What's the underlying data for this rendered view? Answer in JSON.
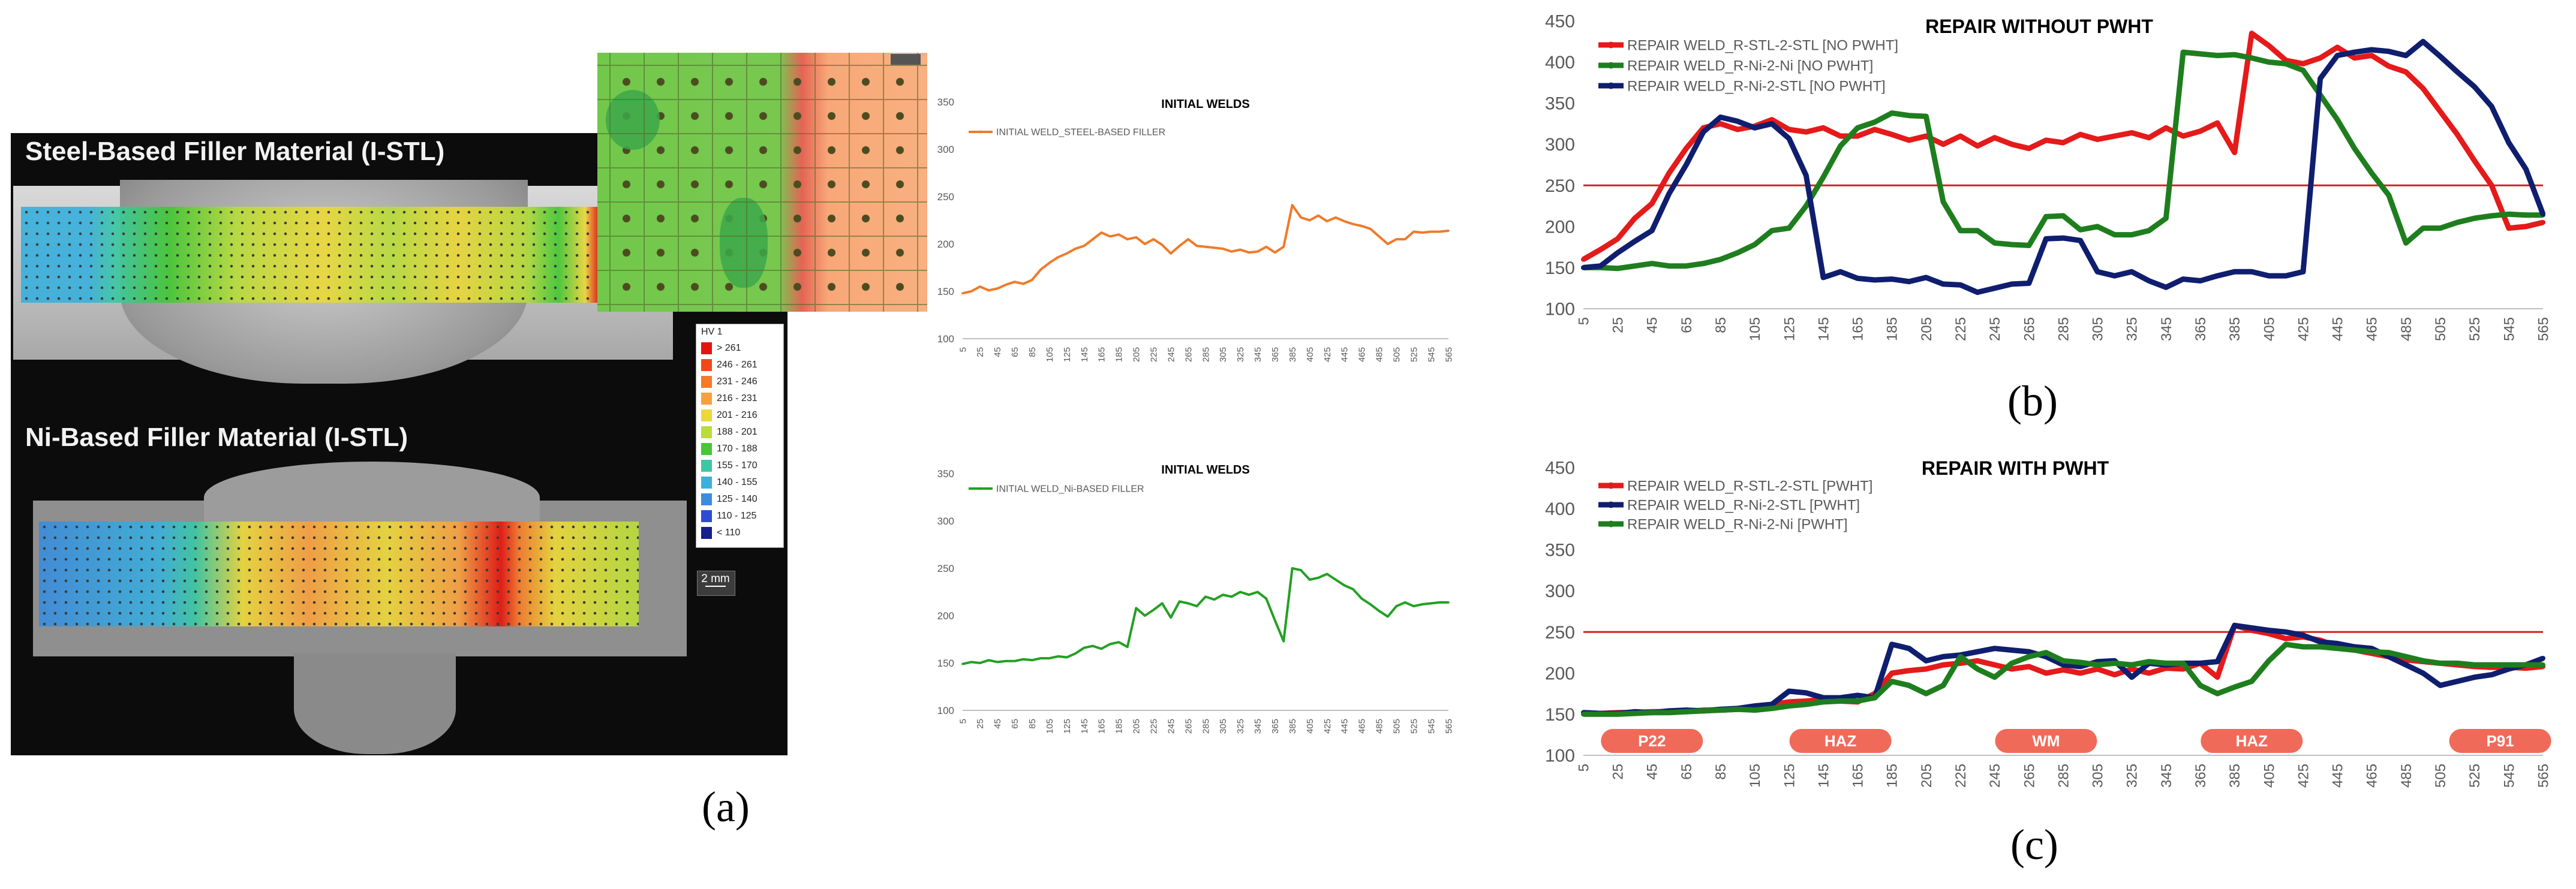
{
  "panel_labels": {
    "a": "(a)",
    "b": "(b)",
    "c": "(c)"
  },
  "micrograph": {
    "steel_title": "Steel-Based Filler Material (I-STL)",
    "ni_title": "Ni-Based Filler Material (I-STL)",
    "scale_bar_text": "2 mm",
    "legend_title": "HV 1",
    "legend": [
      {
        "label": "> 261",
        "color": "#e4150f"
      },
      {
        "label": "246 - 261",
        "color": "#f04a1a"
      },
      {
        "label": "231 - 246",
        "color": "#f57a2a"
      },
      {
        "label": "216 - 231",
        "color": "#f8a040"
      },
      {
        "label": "201 - 216",
        "color": "#ecd83a"
      },
      {
        "label": "188 - 201",
        "color": "#b8dc3c"
      },
      {
        "label": "170 - 188",
        "color": "#44c834"
      },
      {
        "label": "155 - 170",
        "color": "#3cc8a4"
      },
      {
        "label": "140 - 155",
        "color": "#3cb0dc"
      },
      {
        "label": "125 - 140",
        "color": "#3c8cdc"
      },
      {
        "label": "110 - 125",
        "color": "#2c4cd4"
      },
      {
        "label": "< 110",
        "color": "#141e8c"
      }
    ]
  },
  "chart_data": [
    {
      "id": "steel_initial",
      "type": "line",
      "title": "INITIAL WELDS",
      "xlabel": "",
      "ylabel": "",
      "ylim": [
        100,
        350
      ],
      "yticks": [
        100,
        150,
        200,
        250,
        300,
        350
      ],
      "x": [
        5,
        15,
        25,
        35,
        45,
        55,
        65,
        75,
        85,
        95,
        105,
        115,
        125,
        135,
        145,
        155,
        165,
        175,
        185,
        195,
        205,
        215,
        225,
        235,
        245,
        255,
        265,
        275,
        285,
        295,
        305,
        315,
        325,
        335,
        345,
        355,
        365,
        375,
        385,
        395,
        405,
        415,
        425,
        435,
        445,
        455,
        465,
        475,
        485,
        495,
        505,
        515,
        525,
        535,
        545,
        555,
        565
      ],
      "xtick_labels": [
        "5",
        "25",
        "45",
        "65",
        "85",
        "105",
        "125",
        "145",
        "165",
        "185",
        "205",
        "225",
        "245",
        "265",
        "285",
        "305",
        "325",
        "345",
        "365",
        "385",
        "405",
        "425",
        "445",
        "465",
        "485",
        "505",
        "525",
        "545",
        "565"
      ],
      "series": [
        {
          "name": "INITIAL WELD_STEEL-BASED FILLER",
          "color": "#f07a2a",
          "values": [
            148,
            150,
            155,
            151,
            153,
            157,
            160,
            158,
            162,
            173,
            180,
            186,
            190,
            195,
            198,
            205,
            212,
            208,
            210,
            205,
            207,
            200,
            205,
            199,
            190,
            198,
            205,
            198,
            197,
            196,
            195,
            192,
            194,
            191,
            192,
            197,
            191,
            197,
            241,
            228,
            225,
            230,
            224,
            228,
            224,
            221,
            219,
            216,
            208,
            200,
            205,
            205,
            213,
            212,
            213,
            213,
            214
          ]
        }
      ],
      "grid": false
    },
    {
      "id": "ni_initial",
      "type": "line",
      "title": "INITIAL WELDS",
      "xlabel": "",
      "ylabel": "",
      "ylim": [
        100,
        350
      ],
      "yticks": [
        100,
        150,
        200,
        250,
        300,
        350
      ],
      "x": [
        5,
        15,
        25,
        35,
        45,
        55,
        65,
        75,
        85,
        95,
        105,
        115,
        125,
        135,
        145,
        155,
        165,
        175,
        185,
        195,
        205,
        215,
        225,
        235,
        245,
        255,
        265,
        275,
        285,
        295,
        305,
        315,
        325,
        335,
        345,
        355,
        365,
        375,
        385,
        395,
        405,
        415,
        425,
        435,
        445,
        455,
        465,
        475,
        485,
        495,
        505,
        515,
        525,
        535,
        545,
        555,
        565
      ],
      "xtick_labels": [
        "5",
        "25",
        "45",
        "65",
        "85",
        "105",
        "125",
        "145",
        "165",
        "185",
        "205",
        "225",
        "245",
        "265",
        "285",
        "305",
        "325",
        "345",
        "365",
        "385",
        "405",
        "425",
        "445",
        "465",
        "485",
        "505",
        "525",
        "545",
        "565"
      ],
      "series": [
        {
          "name": "INITIAL WELD_Ni-BASED FILLER",
          "color": "#23a023",
          "values": [
            149,
            151,
            150,
            153,
            151,
            152,
            152,
            154,
            153,
            155,
            155,
            157,
            156,
            160,
            166,
            168,
            165,
            170,
            172,
            167,
            208,
            200,
            206,
            213,
            198,
            215,
            213,
            210,
            220,
            217,
            222,
            220,
            225,
            222,
            225,
            218,
            195,
            173,
            250,
            248,
            238,
            240,
            244,
            238,
            232,
            228,
            218,
            212,
            205,
            199,
            210,
            214,
            210,
            212,
            213,
            214,
            214
          ]
        }
      ],
      "grid": false
    },
    {
      "id": "repair_without_pwht",
      "type": "line",
      "title": "REPAIR WITHOUT PWHT",
      "xlabel": "",
      "ylabel": "",
      "ylim": [
        100,
        450
      ],
      "yticks": [
        100,
        150,
        200,
        250,
        300,
        350,
        400,
        450
      ],
      "x": [
        5,
        15,
        25,
        35,
        45,
        55,
        65,
        75,
        85,
        95,
        105,
        115,
        125,
        135,
        145,
        155,
        165,
        175,
        185,
        195,
        205,
        215,
        225,
        235,
        245,
        255,
        265,
        275,
        285,
        295,
        305,
        315,
        325,
        335,
        345,
        355,
        365,
        375,
        385,
        395,
        405,
        415,
        425,
        435,
        445,
        455,
        465,
        475,
        485,
        495,
        505,
        515,
        525,
        535,
        545,
        555,
        565
      ],
      "xtick_labels": [
        "5",
        "25",
        "45",
        "65",
        "85",
        "105",
        "125",
        "145",
        "165",
        "185",
        "205",
        "225",
        "245",
        "265",
        "285",
        "305",
        "325",
        "345",
        "365",
        "385",
        "405",
        "425",
        "445",
        "465",
        "485",
        "505",
        "525",
        "545",
        "565"
      ],
      "reference_line": {
        "value": 250,
        "color": "#d42020"
      },
      "series": [
        {
          "name": "REPAIR WELD_R-STL-2-STL [NO PWHT]",
          "color": "#e51a1a",
          "values": [
            160,
            172,
            185,
            210,
            228,
            265,
            295,
            320,
            325,
            318,
            322,
            330,
            318,
            315,
            320,
            310,
            310,
            318,
            312,
            305,
            310,
            300,
            310,
            298,
            308,
            300,
            295,
            305,
            302,
            312,
            306,
            310,
            314,
            308,
            320,
            310,
            316,
            326,
            290,
            435,
            420,
            402,
            398,
            405,
            418,
            405,
            408,
            395,
            388,
            368,
            340,
            312,
            280,
            250,
            198,
            200,
            205
          ]
        },
        {
          "name": "REPAIR WELD_R-Ni-2-Ni [NO PWHT]",
          "color": "#1e7e1e",
          "values": [
            150,
            150,
            149,
            152,
            155,
            152,
            152,
            155,
            160,
            168,
            178,
            195,
            198,
            225,
            260,
            298,
            320,
            327,
            338,
            335,
            334,
            230,
            195,
            195,
            180,
            178,
            177,
            212,
            213,
            196,
            200,
            190,
            190,
            195,
            210,
            412,
            410,
            408,
            409,
            405,
            400,
            398,
            390,
            360,
            330,
            295,
            265,
            238,
            180,
            198,
            198,
            205,
            210,
            213,
            215,
            214,
            214
          ]
        },
        {
          "name": "REPAIR WELD_R-Ni-2-STL [NO PWHT]",
          "color": "#0f1e6e",
          "values": [
            150,
            152,
            168,
            182,
            195,
            240,
            275,
            315,
            333,
            328,
            320,
            325,
            307,
            262,
            138,
            145,
            137,
            135,
            136,
            133,
            138,
            130,
            129,
            120,
            125,
            130,
            131,
            185,
            186,
            183,
            145,
            140,
            145,
            134,
            126,
            136,
            134,
            140,
            145,
            145,
            140,
            140,
            145,
            380,
            408,
            412,
            415,
            413,
            408,
            425,
            407,
            388,
            370,
            346,
            302,
            270,
            215
          ]
        }
      ],
      "grid": false
    },
    {
      "id": "repair_with_pwht",
      "type": "line",
      "title": "REPAIR WITH PWHT",
      "xlabel": "",
      "ylabel": "",
      "ylim": [
        100,
        450
      ],
      "yticks": [
        100,
        150,
        200,
        250,
        300,
        350,
        400,
        450
      ],
      "x": [
        5,
        15,
        25,
        35,
        45,
        55,
        65,
        75,
        85,
        95,
        105,
        115,
        125,
        135,
        145,
        155,
        165,
        175,
        185,
        195,
        205,
        215,
        225,
        235,
        245,
        255,
        265,
        275,
        285,
        295,
        305,
        315,
        325,
        335,
        345,
        355,
        365,
        375,
        385,
        395,
        405,
        415,
        425,
        435,
        445,
        455,
        465,
        475,
        485,
        495,
        505,
        515,
        525,
        535,
        545,
        555,
        565
      ],
      "xtick_labels": [
        "5",
        "25",
        "45",
        "65",
        "85",
        "105",
        "125",
        "145",
        "165",
        "185",
        "205",
        "225",
        "245",
        "265",
        "285",
        "305",
        "325",
        "345",
        "365",
        "385",
        "405",
        "425",
        "445",
        "465",
        "485",
        "505",
        "525",
        "545",
        "565"
      ],
      "reference_line": {
        "value": 250,
        "color": "#d42020"
      },
      "zones": [
        "P22",
        "HAZ",
        "WM",
        "HAZ",
        "P91"
      ],
      "series": [
        {
          "name": "REPAIR WELD_R-STL-2-STL [PWHT]",
          "color": "#e51a1a",
          "values": [
            152,
            151,
            152,
            152,
            153,
            153,
            153,
            155,
            155,
            156,
            160,
            162,
            165,
            166,
            168,
            166,
            165,
            175,
            200,
            203,
            205,
            210,
            212,
            215,
            210,
            205,
            208,
            200,
            204,
            200,
            205,
            198,
            205,
            200,
            206,
            205,
            212,
            195,
            258,
            252,
            248,
            242,
            244,
            240,
            232,
            228,
            224,
            220,
            216,
            214,
            212,
            210,
            208,
            207,
            207,
            206,
            208
          ]
        },
        {
          "name": "REPAIR WELD_R-Ni-2-STL [PWHT]",
          "color": "#0f1e6e",
          "values": [
            152,
            151,
            151,
            153,
            152,
            154,
            155,
            154,
            156,
            157,
            160,
            162,
            178,
            176,
            170,
            170,
            173,
            170,
            235,
            230,
            215,
            220,
            222,
            226,
            230,
            228,
            226,
            220,
            210,
            208,
            214,
            215,
            195,
            212,
            210,
            212,
            212,
            214,
            258,
            255,
            252,
            250,
            246,
            238,
            236,
            232,
            230,
            220,
            210,
            200,
            185,
            190,
            195,
            198,
            205,
            210,
            218
          ]
        },
        {
          "name": "REPAIR WELD_R-Ni-2-Ni [PWHT]",
          "color": "#1e7e1e",
          "values": [
            150,
            150,
            150,
            151,
            152,
            152,
            153,
            154,
            155,
            156,
            155,
            157,
            160,
            162,
            165,
            166,
            166,
            170,
            190,
            185,
            175,
            185,
            220,
            205,
            195,
            212,
            220,
            225,
            215,
            213,
            210,
            212,
            210,
            214,
            212,
            212,
            185,
            175,
            183,
            190,
            215,
            235,
            232,
            232,
            230,
            228,
            226,
            225,
            220,
            215,
            212,
            212,
            210,
            210,
            210,
            210,
            210
          ]
        }
      ],
      "grid": false
    }
  ]
}
